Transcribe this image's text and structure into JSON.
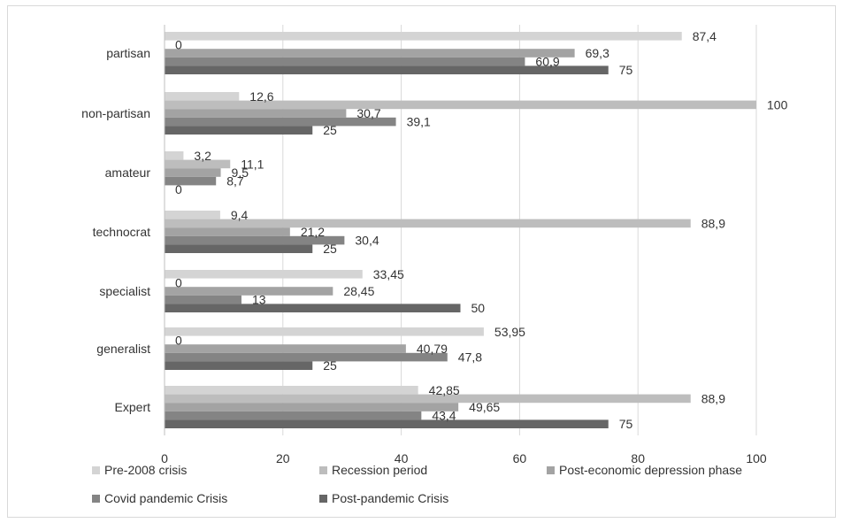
{
  "chart_data": {
    "type": "bar",
    "orientation": "horizontal",
    "categories": [
      "partisan",
      "non-partisan",
      "amateur",
      "technocrat",
      "specialist",
      "generalist",
      "Expert"
    ],
    "category_labels": {
      "partisan": "partisan",
      "non-partisan": "non-partisan",
      "amateur": "amateur",
      "technocrat": "technocrat",
      "specialist": "specialist",
      "generalist": "generalist",
      "Expert": "Expert"
    },
    "series": [
      {
        "name": "Pre-2008 crisis",
        "color": "#d4d4d4",
        "values": [
          87.4,
          12.6,
          3.2,
          9.4,
          33.45,
          53.95,
          42.85
        ],
        "labels": [
          "87,4",
          "12,6",
          "3,2",
          "9,4",
          "33,45",
          "53,95",
          "42,85"
        ]
      },
      {
        "name": "Recession period",
        "color": "#bdbdbd",
        "values": [
          0,
          100,
          11.1,
          88.9,
          0,
          0,
          88.9
        ],
        "labels": [
          "0",
          "100",
          "11,1",
          "88,9",
          "0",
          "0",
          "88,9"
        ]
      },
      {
        "name": "Post-economic depression phase",
        "color": "#a3a3a3",
        "values": [
          69.3,
          30.7,
          9.5,
          21.2,
          28.45,
          40.79,
          49.65
        ],
        "labels": [
          "69,3",
          "30,7",
          "9,5",
          "21,2",
          "28,45",
          "40,79",
          "49,65"
        ]
      },
      {
        "name": "Covid pandemic Crisis",
        "color": "#848484",
        "values": [
          60.9,
          39.1,
          8.7,
          30.4,
          13,
          47.8,
          43.4
        ],
        "labels": [
          "60,9",
          "39,1",
          "8,7",
          "30,4",
          "13",
          "47,8",
          "43,4"
        ]
      },
      {
        "name": "Post-pandemic Crisis",
        "color": "#666666",
        "values": [
          75,
          25,
          0,
          25,
          50,
          25,
          75
        ],
        "labels": [
          "75",
          "25",
          "0",
          "25",
          "50",
          "25",
          "75"
        ]
      }
    ],
    "xlim": [
      0,
      100
    ],
    "xticks": [
      0,
      20,
      40,
      60,
      80,
      100
    ],
    "xtick_labels": [
      "0",
      "20",
      "40",
      "60",
      "80",
      "100"
    ],
    "grid": "vertical",
    "legend": "bottom",
    "title": "",
    "xlabel": "",
    "ylabel": ""
  }
}
